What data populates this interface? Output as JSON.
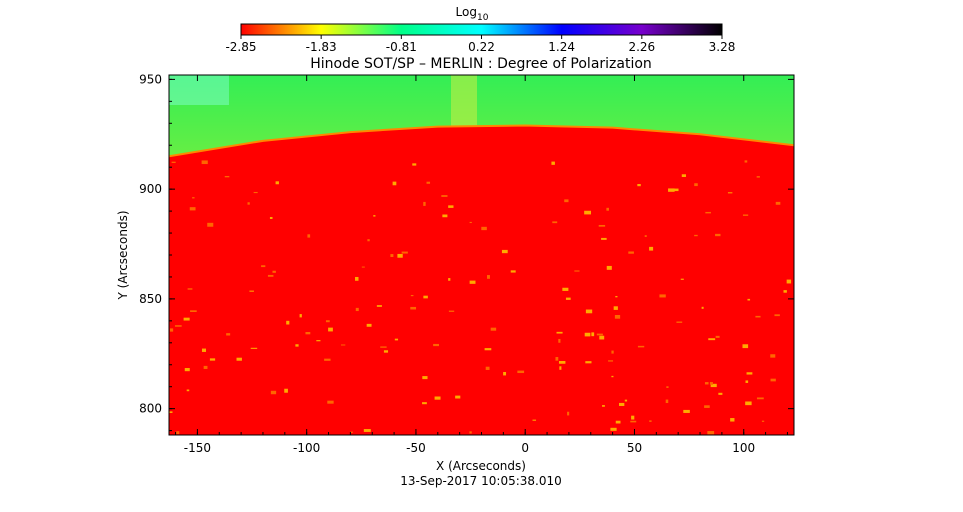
{
  "chart_data": {
    "type": "heatmap",
    "title": "Hinode SOT/SP – MERLIN : Degree of Polarization",
    "xlabel": "X (Arcseconds)",
    "ylabel": "Y (Arcseconds)",
    "timestamp": "13-Sep-2017 10:05:38.010",
    "xlim": [
      -163,
      123
    ],
    "ylim": [
      788,
      952
    ],
    "x_ticks": [
      -150,
      -100,
      -50,
      0,
      50,
      100
    ],
    "y_ticks": [
      800,
      850,
      900,
      950
    ],
    "limb": {
      "x": [
        -163,
        -120,
        -80,
        -40,
        0,
        40,
        80,
        123
      ],
      "y": [
        915,
        922,
        926,
        928.5,
        929,
        928,
        925,
        920
      ]
    },
    "colorbar": {
      "label": "Log",
      "label_subscript": "10",
      "range": [
        -2.85,
        3.28
      ],
      "ticks": [
        "-2.85",
        "-1.83",
        "-0.81",
        "0.22",
        "1.24",
        "2.26",
        "3.28"
      ],
      "colors": [
        "#ff0000",
        "#ffff00",
        "#00ff88",
        "#00ffff",
        "#0000ff",
        "#7700cc",
        "#000000"
      ]
    }
  }
}
